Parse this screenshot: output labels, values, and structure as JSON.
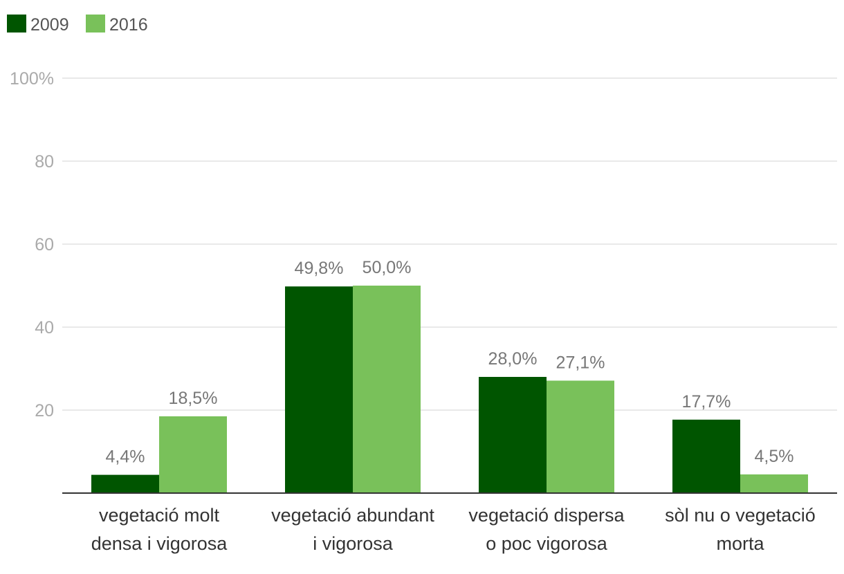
{
  "chart_data": {
    "type": "bar",
    "title": "",
    "xlabel": "",
    "ylabel": "",
    "ylim": [
      0,
      100
    ],
    "yticks": [
      {
        "value": 20,
        "label": "20"
      },
      {
        "value": 40,
        "label": "40"
      },
      {
        "value": 60,
        "label": "60"
      },
      {
        "value": 80,
        "label": "80"
      },
      {
        "value": 100,
        "label": "100%"
      }
    ],
    "grid": true,
    "legend_position": "top-left",
    "categories": [
      [
        "vegetació molt",
        "densa i vigorosa"
      ],
      [
        "vegetació abundant",
        "i vigorosa"
      ],
      [
        "vegetació dispersa",
        "o poc vigorosa"
      ],
      [
        "sòl nu o vegetació",
        "morta"
      ]
    ],
    "series": [
      {
        "name": "2009",
        "color": "#005500",
        "values": [
          4.4,
          49.8,
          28.0,
          17.7
        ],
        "labels": [
          "4,4%",
          "49,8%",
          "28,0%",
          "17,7%"
        ]
      },
      {
        "name": "2016",
        "color": "#79c15a",
        "values": [
          18.5,
          50.0,
          27.1,
          4.5
        ],
        "labels": [
          "18,5%",
          "50,0%",
          "27,1%",
          "4,5%"
        ]
      }
    ]
  }
}
